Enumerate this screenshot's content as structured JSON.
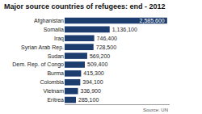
{
  "chart_data": {
    "type": "bar",
    "title": "Major source countries of refugees: end - 2012",
    "orientation": "horizontal",
    "categories": [
      "Afghanistan",
      "Somalia",
      "Iraq",
      "Syrian Arab Rep.",
      "Sudan",
      "Dem. Rep. of Congo",
      "Burma",
      "Colombia",
      "Vietnam",
      "Eritrea"
    ],
    "values": [
      2585600,
      1136100,
      746400,
      728500,
      569200,
      509400,
      415300,
      394100,
      336900,
      285100
    ],
    "value_labels": [
      "2,585,600",
      "1,136,100",
      "746,400",
      "728,500",
      "569,200",
      "509,400",
      "415,300",
      "394,100",
      "336,900",
      "285,100"
    ],
    "data_labels": true,
    "color": "#1c3d6e",
    "xlim": [
      0,
      2650000
    ],
    "xticks": [],
    "tick_labels": "y",
    "grid": false,
    "annotations": [
      "Source: UN"
    ]
  }
}
